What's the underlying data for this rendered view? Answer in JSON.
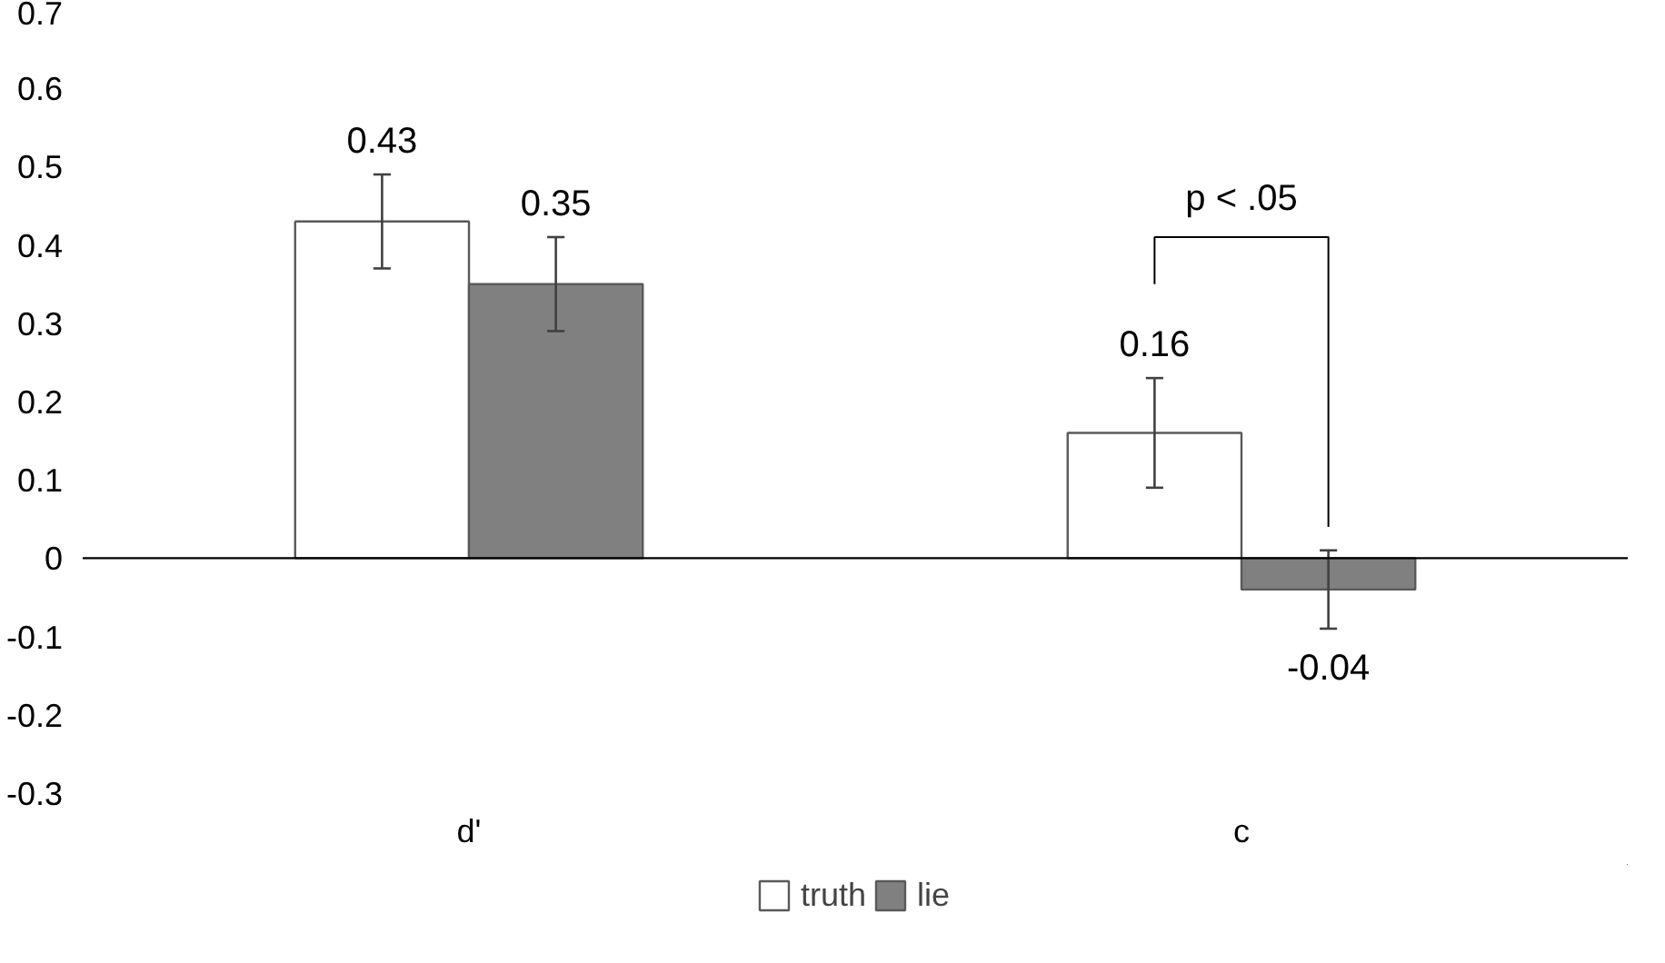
{
  "chart_data": {
    "type": "bar",
    "categories": [
      "d'",
      "c"
    ],
    "series": [
      {
        "name": "truth",
        "color": "#ffffff",
        "values": [
          0.43,
          0.16
        ],
        "errors": [
          0.06,
          0.07
        ]
      },
      {
        "name": "lie",
        "color": "#808080",
        "values": [
          0.35,
          -0.04
        ],
        "errors": [
          0.06,
          0.05
        ]
      }
    ],
    "ylim": [
      -0.3,
      0.7
    ],
    "yticks": [
      -0.3,
      -0.2,
      -0.1,
      0,
      0.1,
      0.2,
      0.3,
      0.4,
      0.5,
      0.6,
      0.7
    ],
    "data_labels": true,
    "legend": "bottom",
    "annotations": [
      "p < .05"
    ]
  }
}
